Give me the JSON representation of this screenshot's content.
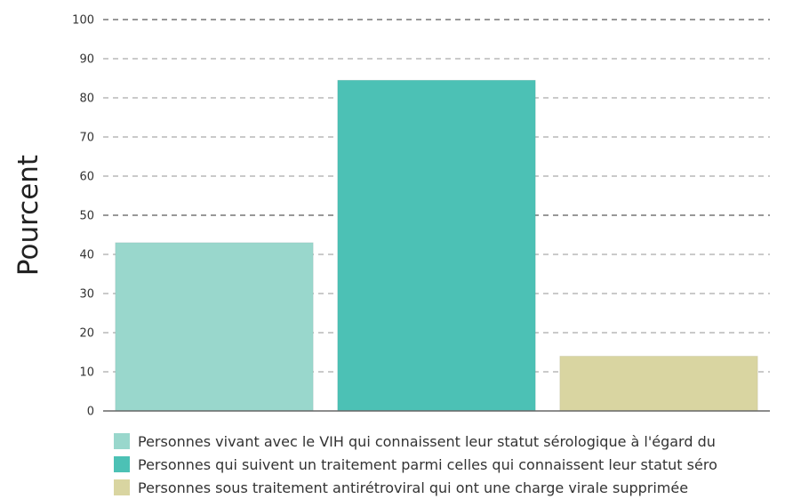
{
  "chart_data": {
    "type": "bar",
    "ylabel": "Pourcent",
    "xlabel": "",
    "ylim": [
      0,
      100
    ],
    "yticks": [
      0,
      10,
      20,
      30,
      40,
      50,
      60,
      70,
      80,
      90,
      100
    ],
    "grid": true,
    "legend_position": "bottom",
    "series": [
      {
        "name": "Personnes vivant avec le VIH qui connaissent leur statut sérologique à l'égard du",
        "value": 43,
        "color": "#99d7cc"
      },
      {
        "name": "Personnes qui suivent un traitement parmi celles qui connaissent leur statut séro",
        "value": 84.5,
        "color": "#4cc1b5"
      },
      {
        "name": "Personnes sous traitement antirétroviral qui ont une charge virale supprimée",
        "value": 14,
        "color": "#d9d5a1"
      }
    ]
  }
}
